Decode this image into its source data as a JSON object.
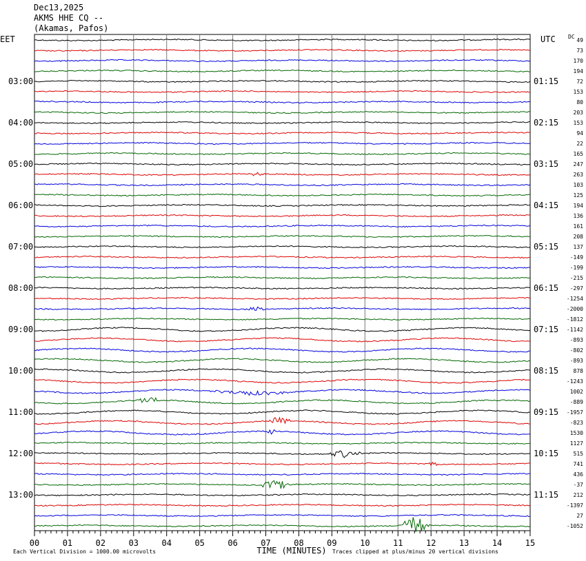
{
  "header": {
    "date": "Dec13,2025",
    "station": "AKMS HHE CQ --",
    "location": "(Akamas, Pafos)"
  },
  "labels": {
    "left_tz": "EET",
    "right_tz": "UTC",
    "dc": "DC",
    "xlabel": "TIME (MINUTES)",
    "footer_left": "Each Vertical Division = 1000.00 microvolts",
    "footer_right": "Traces clipped at plus/minus 20 vertical divisions"
  },
  "chart_data": {
    "type": "line",
    "title": "",
    "xlabel": "TIME (MINUTES)",
    "ylabel": "",
    "xlim": [
      0,
      15
    ],
    "x_ticks": [
      "00",
      "01",
      "02",
      "03",
      "04",
      "05",
      "06",
      "07",
      "08",
      "09",
      "10",
      "11",
      "12",
      "13",
      "14",
      "15"
    ],
    "grid": true,
    "trace_colors": [
      "#000000",
      "#dd0000",
      "#0000dd",
      "#006600"
    ],
    "left_hour_labels": [
      "03:00",
      "04:00",
      "05:00",
      "06:00",
      "07:00",
      "08:00",
      "09:00",
      "10:00",
      "11:00",
      "12:00",
      "13:00"
    ],
    "right_hour_labels": [
      "01:15",
      "02:15",
      "03:15",
      "04:15",
      "05:15",
      "06:15",
      "07:15",
      "08:15",
      "09:15",
      "10:15",
      "11:15"
    ],
    "dc_offsets": [
      49,
      73,
      170,
      194,
      72,
      153,
      80,
      203,
      153,
      94,
      22,
      165,
      247,
      263,
      103,
      125,
      194,
      136,
      161,
      208,
      137,
      -149,
      -199,
      -215,
      -297,
      -1254,
      -2000,
      -1812,
      -1142,
      -893,
      -802,
      -893,
      878,
      -1243,
      1002,
      -889,
      -1957,
      -823,
      1530,
      1127,
      515,
      741,
      436,
      -37,
      212,
      -1397,
      27,
      -1052
    ],
    "events": [
      {
        "trace": 13,
        "x_min": 6.5,
        "x_max": 7.0,
        "amp": 3
      },
      {
        "trace": 26,
        "x_min": 6.4,
        "x_max": 7.0,
        "amp": 4
      },
      {
        "trace": 34,
        "x_min": 5.0,
        "x_max": 8.0,
        "amp": 3
      },
      {
        "trace": 35,
        "x_min": 3.0,
        "x_max": 4.0,
        "amp": 4
      },
      {
        "trace": 37,
        "x_min": 7.0,
        "x_max": 7.8,
        "amp": 5
      },
      {
        "trace": 38,
        "x_min": 7.0,
        "x_max": 7.3,
        "amp": 5
      },
      {
        "trace": 40,
        "x_min": 8.8,
        "x_max": 10.0,
        "amp": 5
      },
      {
        "trace": 41,
        "x_min": 11.9,
        "x_max": 12.2,
        "amp": 5
      },
      {
        "trace": 43,
        "x_min": 6.8,
        "x_max": 7.8,
        "amp": 7
      },
      {
        "trace": 47,
        "x_min": 11.0,
        "x_max": 12.0,
        "amp": 12
      }
    ],
    "scale": "Each Vertical Division = 1000.00 microvolts"
  }
}
